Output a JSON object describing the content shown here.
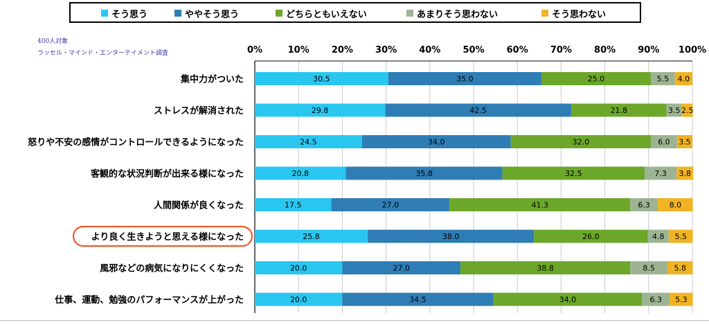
{
  "colors": {
    "series": [
      "#29C6F0",
      "#2E7DB5",
      "#6CA72A",
      "#9DB493",
      "#F0B323"
    ],
    "highlight": "#F05A28",
    "grid": "#c9c9c9",
    "axis": "#000000"
  },
  "notes": {
    "line1": "400人対象",
    "line2": "ラッセル・マインド・エンターテイメント調査"
  },
  "chart_data": {
    "type": "bar",
    "orientation": "horizontal",
    "stacked": true,
    "percent_axis": true,
    "xlim": [
      0,
      100
    ],
    "xticks": [
      "0%",
      "10%",
      "20%",
      "30%",
      "40%",
      "50%",
      "60%",
      "70%",
      "80%",
      "90%",
      "100%"
    ],
    "grid": true,
    "legend_position": "top",
    "highlighted_category": 5,
    "categories": [
      "集中力がついた",
      "ストレスが解消された",
      "怒りや不安の感情がコントロールできるようになった",
      "客観的な状況判断が出来る様になった",
      "人間関係が良くなった",
      "より良く生きようと思える様になった",
      "風邪などの病気になりにくくなった",
      "仕事、運動、勉強のパフォーマンスが上がった"
    ],
    "series": [
      {
        "name": "そう思う",
        "values": [
          30.5,
          29.8,
          24.5,
          20.8,
          17.5,
          25.8,
          20.0,
          20.0
        ]
      },
      {
        "name": "ややそう思う",
        "values": [
          35.0,
          42.5,
          34.0,
          35.8,
          27.0,
          38.0,
          27.0,
          34.5
        ]
      },
      {
        "name": "どちらともいえない",
        "values": [
          25.0,
          21.8,
          32.0,
          32.5,
          41.3,
          26.0,
          38.8,
          34.0
        ]
      },
      {
        "name": "あまりそう思わない",
        "values": [
          5.5,
          3.5,
          6.0,
          7.3,
          6.3,
          4.8,
          8.5,
          6.3
        ]
      },
      {
        "name": "そう思わない",
        "values": [
          4.0,
          2.5,
          3.5,
          3.8,
          8.0,
          5.5,
          5.8,
          5.3
        ]
      }
    ]
  }
}
